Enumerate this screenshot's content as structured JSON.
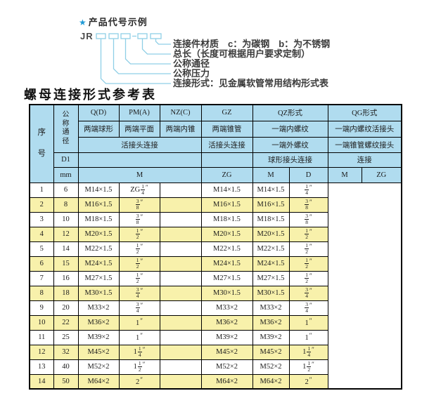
{
  "diagram": {
    "star": "★",
    "title": "产品代号示例",
    "prefix": "JR",
    "labels": [
      "连接件材质　c：为碳钢　b：为不锈钢",
      "总长（长度可根据用户要求定制）",
      "公称通径",
      "公称压力",
      "连接形式：见金属软管常用结构形式表"
    ],
    "line_color": "#8fcfe6"
  },
  "table": {
    "title": "螺母连接形式参考表",
    "header": {
      "xuhao": "序号",
      "tongjing": "公称通径",
      "d1": "D1",
      "mm": "mm",
      "col_q": "Q(D)",
      "col_pm": "PM(A)",
      "col_nz": "NZ(C)",
      "col_gz": "GZ",
      "col_qz": "QZ形式",
      "col_qg": "QG形式",
      "q_desc": "两端球形",
      "pm_desc": "两端平面",
      "nz_desc": "两端内锥",
      "gz_desc": "两端锥管",
      "qz_desc1": "一端内螺纹",
      "qg_desc1": "一端内螺纹活接头",
      "qpmnz_conn": "活接头连接",
      "gz_conn": "活接头连接",
      "qz_desc2": "一端外螺纹",
      "qg_desc2": "一端锥管螺纹接头",
      "qz_conn": "球形接头连接",
      "qg_conn": "连接",
      "m_label": "M",
      "zg_label": "ZG",
      "qz_m": "M",
      "qz_d": "D",
      "qg_m": "M",
      "qg_zg": "ZG"
    },
    "rows": [
      {
        "no": "1",
        "d1": "6",
        "m": "M14×1.5",
        "gz": "ZG 1/4″",
        "qz_m": "",
        "qz_d": "M14×1.5",
        "qg_m": "M14×1.5",
        "qg_zg": "1/4″"
      },
      {
        "no": "2",
        "d1": "8",
        "m": "M16×1.5",
        "gz": "3/8″",
        "qz_m": "",
        "qz_d": "M16×1.5",
        "qg_m": "M16×1.5",
        "qg_zg": "3/8″"
      },
      {
        "no": "3",
        "d1": "10",
        "m": "M18×1.5",
        "gz": "3/8″",
        "qz_m": "",
        "qz_d": "M18×1.5",
        "qg_m": "M18×1.5",
        "qg_zg": "3/8″"
      },
      {
        "no": "4",
        "d1": "12",
        "m": "M20×1.5",
        "gz": "1/2″",
        "qz_m": "",
        "qz_d": "M20×1.5",
        "qg_m": "M20×1.5",
        "qg_zg": "1/2″"
      },
      {
        "no": "5",
        "d1": "14",
        "m": "M22×1.5",
        "gz": "1/2″",
        "qz_m": "",
        "qz_d": "M22×1.5",
        "qg_m": "M22×1.5",
        "qg_zg": "1/2″"
      },
      {
        "no": "6",
        "d1": "15",
        "m": "M24×1.5",
        "gz": "1/2″",
        "qz_m": "",
        "qz_d": "M24×1.5",
        "qg_m": "M24×1.5",
        "qg_zg": "1/2″"
      },
      {
        "no": "7",
        "d1": "16",
        "m": "M27×1.5",
        "gz": "1/2″",
        "qz_m": "",
        "qz_d": "M27×1.5",
        "qg_m": "M27×1.5",
        "qg_zg": "1/2″"
      },
      {
        "no": "8",
        "d1": "18",
        "m": "M30×1.5",
        "gz": "3/4″",
        "qz_m": "",
        "qz_d": "M30×1.5",
        "qg_m": "M30×1.5",
        "qg_zg": "3/4″"
      },
      {
        "no": "9",
        "d1": "20",
        "m": "M33×2",
        "gz": "3/4″",
        "qz_m": "",
        "qz_d": "M33×2",
        "qg_m": "M33×2",
        "qg_zg": "3/4″"
      },
      {
        "no": "10",
        "d1": "22",
        "m": "M36×2",
        "gz": "1″",
        "qz_m": "",
        "qz_d": "M36×2",
        "qg_m": "M36×2",
        "qg_zg": "1″"
      },
      {
        "no": "11",
        "d1": "25",
        "m": "M39×2",
        "gz": "1″",
        "qz_m": "",
        "qz_d": "M39×2",
        "qg_m": "M39×2",
        "qg_zg": "1″"
      },
      {
        "no": "12",
        "d1": "32",
        "m": "M45×2",
        "gz": "1 1/4″",
        "qz_m": "",
        "qz_d": "M45×2",
        "qg_m": "M45×2",
        "qg_zg": "1 1/4″"
      },
      {
        "no": "13",
        "d1": "40",
        "m": "M52×2",
        "gz": "1 1/2″",
        "qz_m": "",
        "qz_d": "M52×2",
        "qg_m": "M52×2",
        "qg_zg": "1 1/2″"
      },
      {
        "no": "14",
        "d1": "50",
        "m": "M64×2",
        "gz": "2″",
        "qz_m": "",
        "qz_d": "M64×2",
        "qg_m": "M64×2",
        "qg_zg": "2″"
      }
    ],
    "colors": {
      "header_bg": "#b0dcef",
      "alt_row_bg": "#f8f1ab",
      "border": "#000000"
    }
  }
}
